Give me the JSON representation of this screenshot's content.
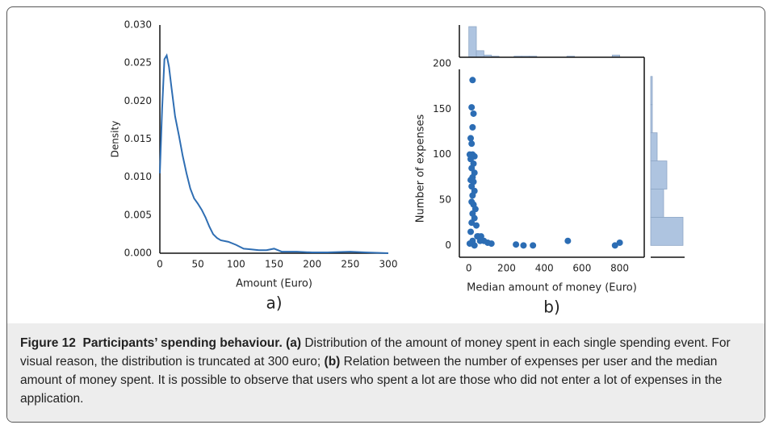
{
  "chart_data": [
    {
      "type": "line",
      "panel_label": "a)",
      "xlabel": "Amount (Euro)",
      "ylabel": "Density",
      "color": "#2f6eb3",
      "x": [
        0,
        3,
        6,
        9,
        12,
        15,
        20,
        25,
        30,
        35,
        40,
        45,
        50,
        55,
        60,
        65,
        70,
        75,
        80,
        90,
        100,
        110,
        120,
        130,
        140,
        150,
        160,
        180,
        200,
        220,
        250,
        270,
        300
      ],
      "values": [
        0.0105,
        0.019,
        0.0255,
        0.026,
        0.0245,
        0.022,
        0.018,
        0.0155,
        0.0128,
        0.0105,
        0.0085,
        0.0072,
        0.0065,
        0.0057,
        0.0047,
        0.0035,
        0.0025,
        0.002,
        0.0017,
        0.0015,
        0.0011,
        0.0006,
        0.0005,
        0.0004,
        0.0004,
        0.0006,
        0.0002,
        0.0002,
        0.0001,
        0.0001,
        0.0002,
        0.0001,
        0
      ],
      "xlim": [
        0,
        300
      ],
      "ylim": [
        0,
        0.03
      ],
      "xticks": [
        0,
        50,
        100,
        150,
        200,
        250,
        300
      ],
      "yticks": [
        {
          "value": 0,
          "label": "0.000"
        },
        {
          "value": 0.005,
          "label": "0.005"
        },
        {
          "value": 0.01,
          "label": "0.010"
        },
        {
          "value": 0.015,
          "label": "0.015"
        },
        {
          "value": 0.02,
          "label": "0.020"
        },
        {
          "value": 0.025,
          "label": "0.025"
        },
        {
          "value": 0.03,
          "label": "0.030"
        }
      ]
    },
    {
      "type": "scatter",
      "panel_label": "b)",
      "xlabel": "Median amount of money (Euro)",
      "ylabel": "Number of expenses",
      "color": "#2c6db4",
      "x": [
        20,
        15,
        25,
        20,
        10,
        15,
        5,
        20,
        30,
        10,
        25,
        15,
        30,
        20,
        10,
        25,
        15,
        30,
        20,
        15,
        25,
        35,
        20,
        30,
        15,
        40,
        10,
        50,
        20,
        30,
        60,
        80,
        100,
        120,
        250,
        290,
        340,
        525,
        775,
        800,
        45,
        5,
        65
      ],
      "values": [
        182,
        152,
        145,
        130,
        118,
        112,
        100,
        100,
        98,
        95,
        90,
        85,
        80,
        75,
        72,
        70,
        65,
        60,
        55,
        48,
        45,
        40,
        35,
        30,
        25,
        22,
        15,
        10,
        5,
        0,
        5,
        5,
        3,
        2,
        1,
        0,
        0,
        5,
        0,
        3,
        10,
        2,
        10
      ],
      "xlim": [
        -50,
        930
      ],
      "ylim": [
        -13,
        200
      ],
      "xticks": [
        0,
        200,
        400,
        600,
        800
      ],
      "yticks": [
        0,
        50,
        100,
        150,
        200
      ],
      "top_histogram": {
        "color": "#aec4e0",
        "bins": [
          0,
          40,
          80,
          120,
          160,
          200,
          240,
          280,
          320,
          360,
          400,
          440,
          480,
          520,
          560,
          600,
          640,
          680,
          720,
          760,
          800
        ],
        "counts": [
          28,
          6,
          2,
          1,
          0,
          0,
          1,
          1,
          1,
          0,
          0,
          0,
          0,
          1,
          0,
          0,
          0,
          0,
          0,
          2
        ]
      },
      "right_histogram": {
        "color": "#aec4e0",
        "bins": [
          0,
          31,
          62,
          93,
          124,
          155,
          186
        ],
        "counts": [
          20,
          8,
          10,
          4,
          1,
          1
        ]
      }
    }
  ],
  "caption": {
    "figure": "Figure 12",
    "title": "Participants’ spending behaviour.",
    "parts": [
      {
        "label": "(a)",
        "text": "Distribution of the amount of money spent in each single spending event. For visual reason, the distribution is truncated at 300 euro;"
      },
      {
        "label": "(b)",
        "text": "Relation between the number of expenses per user and the median amount of money spent. It is possible to observe that users who spent a lot are those who did not enter a lot of expenses in the application."
      }
    ]
  }
}
